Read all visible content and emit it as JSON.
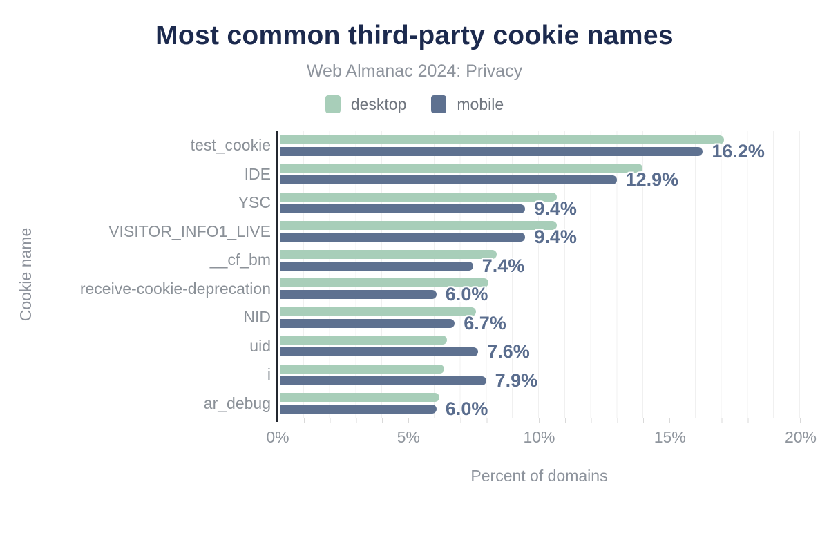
{
  "title": "Most common third-party cookie names",
  "subtitle": "Web Almanac 2024: Privacy",
  "legend": [
    {
      "label": "desktop",
      "color": "#a8ceb9"
    },
    {
      "label": "mobile",
      "color": "#5e7190"
    }
  ],
  "colors": {
    "title": "#1c2a4e",
    "subtitle": "#8d939c",
    "desktop_bar": "#a8ceb9",
    "mobile_bar": "#5e7190",
    "value_label": "#5a6d8e",
    "axis_text": "#8f959d",
    "axis_line": "#23272f",
    "gridline": "#f0f0f0"
  },
  "chart_data": {
    "type": "bar",
    "orientation": "horizontal",
    "title": "Most common third-party cookie names",
    "subtitle": "Web Almanac 2024: Privacy",
    "xlabel": "Percent of domains",
    "ylabel": "Cookie name",
    "xlim": [
      0,
      20
    ],
    "x_ticks": [
      "0%",
      "5%",
      "10%",
      "15%",
      "20%"
    ],
    "grid": "vertical minor gridlines every 1%",
    "legend_position": "top center",
    "categories": [
      "test_cookie",
      "IDE",
      "YSC",
      "VISITOR_INFO1_LIVE",
      "__cf_bm",
      "receive-cookie-deprecation",
      "NID",
      "uid",
      "i",
      "ar_debug"
    ],
    "series": [
      {
        "name": "desktop",
        "color": "#a8ceb9",
        "values": [
          17.0,
          13.9,
          10.6,
          10.6,
          8.3,
          8.0,
          7.5,
          6.4,
          6.3,
          6.1
        ]
      },
      {
        "name": "mobile",
        "color": "#5e7190",
        "values": [
          16.2,
          12.9,
          9.4,
          9.4,
          7.4,
          6.0,
          6.7,
          7.6,
          7.9,
          6.0
        ]
      }
    ],
    "annotated_series": "mobile",
    "data_labels": [
      "16.2%",
      "12.9%",
      "9.4%",
      "9.4%",
      "7.4%",
      "6.0%",
      "6.7%",
      "7.6%",
      "7.9%",
      "6.0%"
    ]
  }
}
